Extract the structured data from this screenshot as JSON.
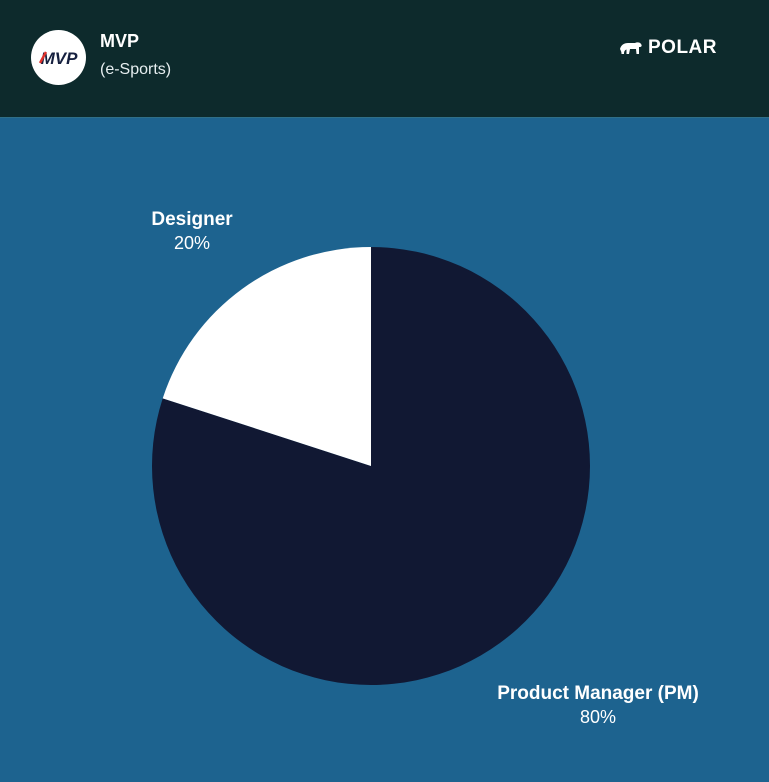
{
  "header": {
    "brand_name": "MVP",
    "brand_sub": "(e-Sports)",
    "logo_text": "MVP",
    "logo_icon": "mvp-logo",
    "partner_logo_icon": "polar-bear-icon",
    "partner_name": "POLAR",
    "background": "#0d2a2c"
  },
  "chart_data": {
    "type": "pie",
    "categories": [
      "Designer",
      "Product Manager (PM)"
    ],
    "values": [
      20,
      80
    ],
    "value_labels": [
      "20%",
      "80%"
    ],
    "colors": [
      "#ffffff",
      "#111833"
    ],
    "background": "#1d638f",
    "start_angle": "12 o'clock",
    "direction": "clockwise, starting with Product Manager (PM)"
  }
}
